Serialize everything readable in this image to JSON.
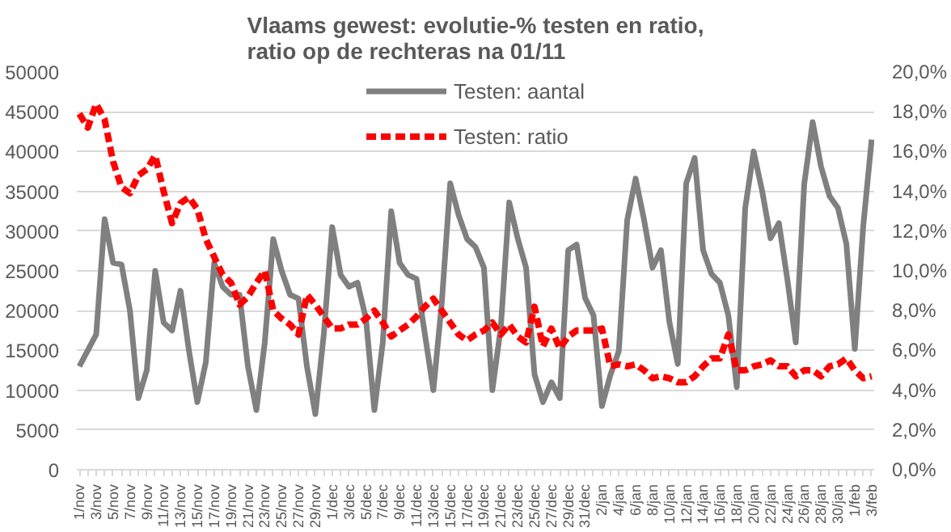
{
  "chart_data": {
    "type": "line",
    "title": "Vlaams gewest: evolutie-% testen en ratio,\nratio op de rechteras na 01/11",
    "categories": [
      "1/nov",
      null,
      "3/nov",
      null,
      "5/nov",
      null,
      "7/nov",
      null,
      "9/nov",
      null,
      "11/nov",
      null,
      "13/nov",
      null,
      "15/nov",
      null,
      "17/nov",
      null,
      "19/nov",
      null,
      "21/nov",
      null,
      "23/nov",
      null,
      "25/nov",
      null,
      "27/nov",
      null,
      "29/nov",
      null,
      "1/dec",
      null,
      "3/dec",
      null,
      "5/dec",
      null,
      "7/dec",
      null,
      "9/dec",
      null,
      "11/dec",
      null,
      "13/dec",
      null,
      "15/dec",
      null,
      "17/dec",
      null,
      "19/dec",
      null,
      "21/dec",
      null,
      "23/dec",
      null,
      "25/dec",
      null,
      "27/dec",
      null,
      "29/dec",
      null,
      "31/dec",
      null,
      "2/jan",
      null,
      "4/jan",
      null,
      "6/jan",
      null,
      "8/jan",
      null,
      "10/jan",
      null,
      "12/jan",
      null,
      "14/jan",
      null,
      "16/jan",
      null,
      "18/jan",
      null,
      "20/jan",
      null,
      "22/jan",
      null,
      "24/jan",
      null,
      "26/jan",
      null,
      "28/jan",
      null,
      "30/jan",
      null,
      "1/feb",
      null,
      "3/feb"
    ],
    "series": [
      {
        "name": "Testen: aantal",
        "color": "#808080",
        "line_style": "solid",
        "values": [
          13000,
          15000,
          17000,
          31500,
          26000,
          25800,
          20000,
          9000,
          12500,
          25000,
          18500,
          17500,
          22500,
          15000,
          8500,
          13500,
          26000,
          23000,
          22000,
          22000,
          13000,
          7500,
          16000,
          29000,
          25000,
          22000,
          21500,
          13000,
          7000,
          17000,
          30500,
          24500,
          23000,
          23500,
          19000,
          7500,
          16000,
          32500,
          26000,
          24500,
          24000,
          17000,
          10000,
          21000,
          36000,
          32000,
          29000,
          28000,
          25400,
          10000,
          17900,
          33600,
          29100,
          25400,
          12000,
          8500,
          11000,
          9000,
          27600,
          28300,
          21600,
          19400,
          8000,
          11900,
          14900,
          31400,
          36600,
          31400,
          25400,
          27600,
          18600,
          13300,
          36000,
          39200,
          27600,
          24600,
          23500,
          19400,
          10400,
          32900,
          40000,
          35100,
          29100,
          31000,
          23900,
          16000,
          35900,
          43700,
          38100,
          34400,
          32900,
          28400,
          15200,
          30600,
          41500
        ]
      },
      {
        "name": "Testen: ratio",
        "color": "#ff0000",
        "line_style": "dashed",
        "axis": "y2",
        "values": [
          17.9,
          17.2,
          18.4,
          17.6,
          15.5,
          14.2,
          13.9,
          14.8,
          15.1,
          15.8,
          14.0,
          12.4,
          13.4,
          13.7,
          13.1,
          11.6,
          10.7,
          9.8,
          9.4,
          8.3,
          8.7,
          9.4,
          10.0,
          8.0,
          7.6,
          7.3,
          6.8,
          8.8,
          8.3,
          7.7,
          7.1,
          7.1,
          7.3,
          7.3,
          7.6,
          8.0,
          7.4,
          6.7,
          7.0,
          7.3,
          7.7,
          8.2,
          8.6,
          8.0,
          7.4,
          6.8,
          6.5,
          6.8,
          7.0,
          7.4,
          6.8,
          7.3,
          6.7,
          6.4,
          8.2,
          6.2,
          7.1,
          6.1,
          6.7,
          7.0,
          7.0,
          7.0,
          7.1,
          5.2,
          5.3,
          5.2,
          5.3,
          5.0,
          4.6,
          4.7,
          4.6,
          4.4,
          4.4,
          4.7,
          5.2,
          5.6,
          5.6,
          6.8,
          5.0,
          5.0,
          5.2,
          5.3,
          5.5,
          5.2,
          5.2,
          4.7,
          5.0,
          5.0,
          4.7,
          5.2,
          5.3,
          5.6,
          5.0,
          4.6,
          4.7
        ]
      }
    ],
    "ylim": [
      0,
      50000
    ],
    "yticks": [
      0,
      5000,
      10000,
      15000,
      20000,
      25000,
      30000,
      35000,
      40000,
      45000,
      50000
    ],
    "y2lim": [
      0,
      20
    ],
    "y2ticks": [
      {
        "value": 0,
        "label": "0,0%"
      },
      {
        "value": 2,
        "label": "2,0%"
      },
      {
        "value": 4,
        "label": "4,0%"
      },
      {
        "value": 6,
        "label": "6,0%"
      },
      {
        "value": 8,
        "label": "8,0%"
      },
      {
        "value": 10,
        "label": "10,0%"
      },
      {
        "value": 12,
        "label": "12,0%"
      },
      {
        "value": 14,
        "label": "14,0%"
      },
      {
        "value": 16,
        "label": "16,0%"
      },
      {
        "value": 18,
        "label": "18,0%"
      },
      {
        "value": 20,
        "label": "20,0%"
      }
    ],
    "grid": "y",
    "legend": "top",
    "marker": "none"
  }
}
